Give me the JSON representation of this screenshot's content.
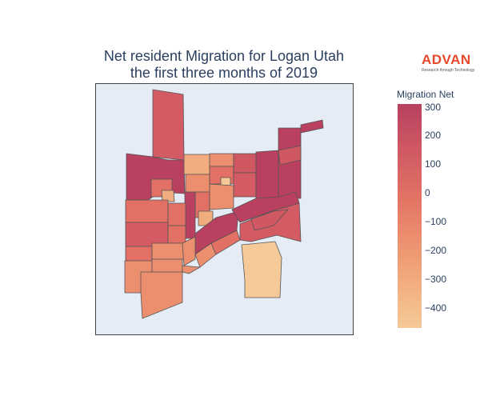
{
  "title": {
    "line1": "Net resident Migration for Logan Utah",
    "line2": "the first three months of 2019"
  },
  "logo": {
    "word": "ADVAN",
    "tagline": "Research through Technology"
  },
  "colorbar": {
    "title": "Migration Net",
    "ticks": [
      "300",
      "200",
      "100",
      "0",
      "−100",
      "−200",
      "−300",
      "−400"
    ],
    "range": [
      -470,
      310
    ],
    "colorscale": [
      "#f5ca98",
      "#f2ad7f",
      "#ec8f6f",
      "#e27064",
      "#cf5863",
      "#b9405f"
    ]
  },
  "colors": {
    "map_background": "#e5ecf6",
    "region_border": "#555555",
    "text": "#2a3f5f",
    "brand": "#e8482c"
  }
}
